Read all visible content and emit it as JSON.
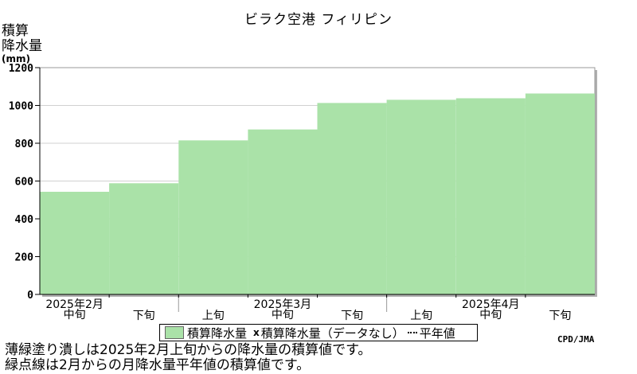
{
  "chart_data": {
    "type": "area",
    "title": "ビラク空港 フィリピン",
    "ylabel_lines": [
      "積算",
      "降水量"
    ],
    "yunit": "(mm)",
    "ylim": [
      0,
      1200
    ],
    "yticks": [
      "0",
      "200",
      "400",
      "600",
      "800",
      "1000",
      "1200"
    ],
    "x_periods": [
      "2025年2月中旬",
      "2025年2月下旬",
      "2025年3月上旬",
      "2025年3月中旬",
      "2025年3月下旬",
      "2025年4月上旬",
      "2025年4月中旬",
      "2025年4月下旬"
    ],
    "series": [
      {
        "name": "積算降水量",
        "color": "#aae2a8",
        "values": [
          543,
          588,
          815,
          873,
          1013,
          1030,
          1038,
          1063
        ]
      }
    ],
    "x_axis_labels": [
      {
        "text": "2025年2月",
        "row": 1
      },
      {
        "text": "中旬",
        "row": 2
      },
      {
        "text": "下旬",
        "row": 3
      },
      {
        "text": "上旬",
        "row": 3
      },
      {
        "text": "2025年3月",
        "row": 1
      },
      {
        "text": "中旬",
        "row": 2
      },
      {
        "text": "下旬",
        "row": 3
      },
      {
        "text": "上旬",
        "row": 3
      },
      {
        "text": "2025年4月",
        "row": 1
      },
      {
        "text": "中旬",
        "row": 2
      },
      {
        "text": "下旬",
        "row": 3
      }
    ],
    "legend": {
      "placement": "bottom",
      "items": [
        "積算降水量",
        "積算降水量（データなし）",
        "平年値"
      ],
      "missing_mark": "x"
    },
    "grid": true
  },
  "footer": {
    "credit": "CPD/JMA",
    "note1": "薄緑塗り潰しは2025年2月上旬からの降水量の積算値です。",
    "note2": "緑点線は2月からの月降水量平年値の積算値です。"
  }
}
